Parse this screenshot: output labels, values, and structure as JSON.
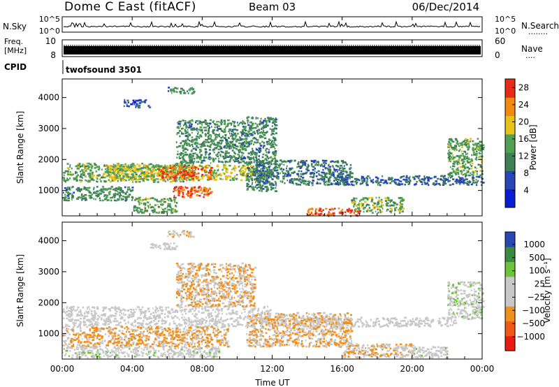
{
  "header": {
    "radar": "Dome C East (fitACF)",
    "beam": "Beam 03",
    "date": "06/Dec/2014"
  },
  "nsky_panel": {
    "label": "N.Sky",
    "left_ticks": [
      "10^5",
      "10^0"
    ],
    "right_ticks": [
      "10^5",
      "10^0"
    ],
    "right_label": "N.Search",
    "right_label_dots": "........"
  },
  "freq_panel": {
    "label_line1": "Freq.",
    "label_line2": "[MHz]",
    "left_ticks": [
      "10",
      "8"
    ],
    "right_ticks": [
      "60",
      "0"
    ],
    "right_label": "Nave",
    "right_label_dots": "...."
  },
  "cpid_panel": {
    "label": "CPID",
    "program": "twofsound 3501"
  },
  "x_axis": {
    "label": "Time UT",
    "ticks": [
      "00:00",
      "04:00",
      "08:00",
      "12:00",
      "16:00",
      "20:00",
      "00:00"
    ]
  },
  "chart_data": [
    {
      "type": "heatmap",
      "title": "",
      "ylabel": "Slant Range [km]",
      "xlabel": "Time UT",
      "xlim_hours": [
        0,
        24
      ],
      "ylim_km": [
        180,
        4600
      ],
      "y_ticks": [
        "4000",
        "3000",
        "2000",
        "1000"
      ],
      "y_tick_values": [
        4000,
        3000,
        2000,
        1000
      ],
      "colorbar": {
        "label": "Power [dB]",
        "ticks": [
          "28",
          "24",
          "20",
          "16",
          "12",
          "8",
          "4"
        ],
        "range": [
          0,
          30
        ],
        "colors_low_to_high": [
          "#0a1cd2",
          "#2746b8",
          "#3f7f57",
          "#52a053",
          "#e8c21a",
          "#f08a10",
          "#e82a18"
        ]
      },
      "echo_regions": [
        {
          "t0": 0.0,
          "t1": 7.5,
          "r0": 1300,
          "r1": 1900,
          "mean": 15
        },
        {
          "t0": 2.5,
          "t1": 11.0,
          "r0": 1350,
          "r1": 1850,
          "mean": 18
        },
        {
          "t0": 5.5,
          "t1": 8.5,
          "r0": 1400,
          "r1": 1800,
          "mean": 26
        },
        {
          "t0": 6.3,
          "t1": 8.5,
          "r0": 800,
          "r1": 1150,
          "mean": 26
        },
        {
          "t0": 0.0,
          "t1": 4.0,
          "r0": 700,
          "r1": 1150,
          "mean": 12
        },
        {
          "t0": 4.0,
          "t1": 6.5,
          "r0": 300,
          "r1": 800,
          "mean": 14
        },
        {
          "t0": 6.5,
          "t1": 10.5,
          "r0": 1900,
          "r1": 3300,
          "mean": 12
        },
        {
          "t0": 10.5,
          "t1": 12.2,
          "r0": 1000,
          "r1": 3400,
          "mean": 11
        },
        {
          "t0": 11.0,
          "t1": 16.5,
          "r0": 1200,
          "r1": 2000,
          "mean": 10
        },
        {
          "t0": 14.0,
          "t1": 17.0,
          "r0": 200,
          "r1": 450,
          "mean": 27
        },
        {
          "t0": 16.5,
          "t1": 19.5,
          "r0": 300,
          "r1": 800,
          "mean": 15
        },
        {
          "t0": 15.5,
          "t1": 24.0,
          "r0": 1200,
          "r1": 1500,
          "mean": 9
        },
        {
          "t0": 22.0,
          "t1": 24.0,
          "r0": 1500,
          "r1": 2700,
          "mean": 14
        },
        {
          "t0": 3.5,
          "t1": 5.0,
          "r0": 3700,
          "r1": 3950,
          "mean": 7
        },
        {
          "t0": 6.0,
          "t1": 7.5,
          "r0": 4150,
          "r1": 4350,
          "mean": 12
        }
      ]
    },
    {
      "type": "heatmap",
      "title": "",
      "ylabel": "Slant Range [km]",
      "xlabel": "Time UT",
      "xlim_hours": [
        0,
        24
      ],
      "ylim_km": [
        180,
        4600
      ],
      "y_ticks": [
        "4000",
        "3000",
        "2000",
        "1000"
      ],
      "y_tick_values": [
        4000,
        3000,
        2000,
        1000
      ],
      "colorbar": {
        "label": "Velocity [m s⁻¹]",
        "ticks": [
          "1000",
          "500",
          "100",
          "25",
          "−25",
          "−100",
          "−500",
          "−1000"
        ],
        "range": [
          -1000,
          1000
        ],
        "colors_low_to_high": [
          "#e81c12",
          "#f05a14",
          "#f0901c",
          "#c8c8c8",
          "#c8c8c8",
          "#6cc43a",
          "#3a8a44",
          "#2a48b4"
        ]
      },
      "echo_regions": [
        {
          "t0": 0.0,
          "t1": 12.0,
          "r0": 1250,
          "r1": 1900,
          "mean": 0
        },
        {
          "t0": 12.0,
          "t1": 22.5,
          "r0": 1250,
          "r1": 1550,
          "mean": 0
        },
        {
          "t0": 0.0,
          "t1": 9.5,
          "r0": 600,
          "r1": 1250,
          "mean": -300
        },
        {
          "t0": 6.5,
          "t1": 11.0,
          "r0": 1900,
          "r1": 3300,
          "mean": -250
        },
        {
          "t0": 10.5,
          "t1": 16.5,
          "r0": 600,
          "r1": 1700,
          "mean": -250
        },
        {
          "t0": 0.0,
          "t1": 9.0,
          "r0": 250,
          "r1": 600,
          "mean": 120
        },
        {
          "t0": 16.0,
          "t1": 20.0,
          "r0": 250,
          "r1": 700,
          "mean": -200
        },
        {
          "t0": 19.0,
          "t1": 22.0,
          "r0": 250,
          "r1": 600,
          "mean": 100
        },
        {
          "t0": 22.0,
          "t1": 24.0,
          "r0": 1500,
          "r1": 2700,
          "mean": 150
        },
        {
          "t0": 5.0,
          "t1": 6.5,
          "r0": 3750,
          "r1": 3950,
          "mean": 0
        },
        {
          "t0": 6.0,
          "t1": 7.5,
          "r0": 4150,
          "r1": 4350,
          "mean": -150
        }
      ]
    }
  ]
}
